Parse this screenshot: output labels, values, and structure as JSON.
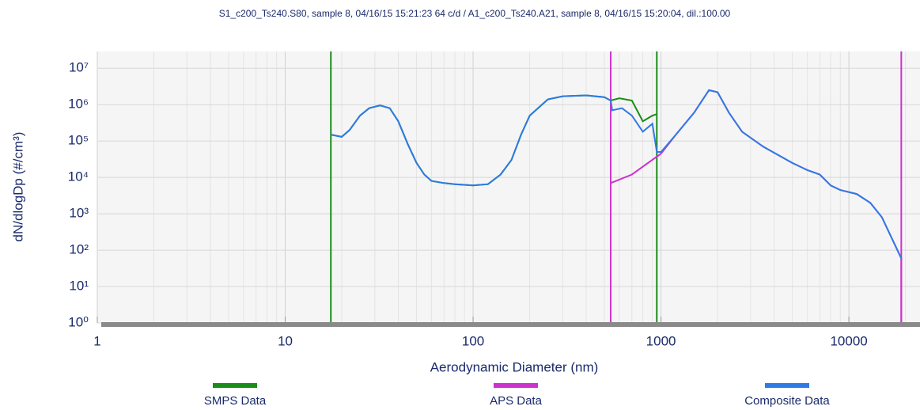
{
  "chart_data": {
    "type": "line",
    "title": "S1_c200_Ts240.S80, sample 8, 04/16/15 15:21:23  64 c/d   /  A1_c200_Ts240.A21, sample 8, 04/16/15 15:20:04, dil.:100.00",
    "x_label": "Aerodynamic Diameter (nm)",
    "y_label": "dN/dlogDp (#/cm³)",
    "x_scale": "log",
    "y_scale": "log",
    "grid": true,
    "legend": "bottom",
    "xlim": [
      1,
      23900
    ],
    "ylim": [
      1,
      29000000
    ],
    "xticks": [
      1,
      10,
      100,
      1000,
      10000
    ],
    "yticks": [
      {
        "value": 1,
        "label": "10⁰"
      },
      {
        "value": 10,
        "label": "10¹"
      },
      {
        "value": 100,
        "label": "10²"
      },
      {
        "value": 1000,
        "label": "10³"
      },
      {
        "value": 10000,
        "label": "10⁴"
      },
      {
        "value": 100000,
        "label": "10⁵"
      },
      {
        "value": 1000000,
        "label": "10⁶"
      },
      {
        "value": 10000000,
        "label": "10⁷"
      }
    ],
    "series": [
      {
        "name": "SMPS Data",
        "color": "#1a8c1a",
        "range": [
          17.5,
          950
        ],
        "x": [
          17.5,
          20,
          22,
          25,
          28,
          32,
          36,
          40,
          45,
          50,
          55,
          60,
          70,
          80,
          100,
          120,
          140,
          160,
          180,
          200,
          250,
          300,
          400,
          500,
          540,
          600,
          700,
          800,
          900,
          950
        ],
        "values": [
          150000,
          130000,
          200000,
          500000,
          800000,
          950000,
          800000,
          350000,
          80000,
          25000,
          12000,
          8000,
          7000,
          6500,
          6000,
          6500,
          12000,
          30000,
          150000,
          500000,
          1400000,
          1700000,
          1800000,
          1600000,
          1300000,
          1500000,
          1300000,
          350000,
          500000,
          550000
        ]
      },
      {
        "name": "APS Data",
        "color": "#cc33cc",
        "range": [
          540,
          19000
        ],
        "x": [
          540,
          700,
          1000,
          1200,
          1500,
          1800,
          2000,
          2300,
          2700,
          3500,
          5000,
          6000,
          7000,
          8000,
          9000,
          11000,
          13000,
          15000,
          17000,
          19000,
          19000
        ],
        "values": [
          7000,
          12000,
          45000,
          150000,
          600000,
          2500000,
          2200000,
          600000,
          180000,
          70000,
          25000,
          16000,
          12000,
          6000,
          4500,
          3500,
          2000,
          800,
          200,
          60,
          1
        ]
      },
      {
        "name": "Composite Data",
        "color": "#2f7ae5",
        "x": [
          17.5,
          20,
          22,
          25,
          28,
          32,
          36,
          40,
          45,
          50,
          55,
          60,
          70,
          80,
          100,
          120,
          140,
          160,
          180,
          200,
          250,
          300,
          400,
          500,
          540,
          550,
          620,
          700,
          800,
          900,
          950,
          1000,
          1200,
          1500,
          1800,
          2000,
          2300,
          2700,
          3500,
          5000,
          6000,
          7000,
          8000,
          9000,
          11000,
          13000,
          15000,
          17000,
          19000
        ],
        "values": [
          150000,
          130000,
          200000,
          500000,
          800000,
          950000,
          800000,
          350000,
          80000,
          25000,
          12000,
          8000,
          7000,
          6500,
          6000,
          6500,
          12000,
          30000,
          150000,
          500000,
          1400000,
          1700000,
          1800000,
          1600000,
          1300000,
          700000,
          800000,
          500000,
          180000,
          300000,
          50000,
          50000,
          150000,
          600000,
          2500000,
          2200000,
          600000,
          180000,
          70000,
          25000,
          16000,
          12000,
          6000,
          4500,
          3500,
          2000,
          800,
          200,
          60
        ]
      }
    ]
  }
}
